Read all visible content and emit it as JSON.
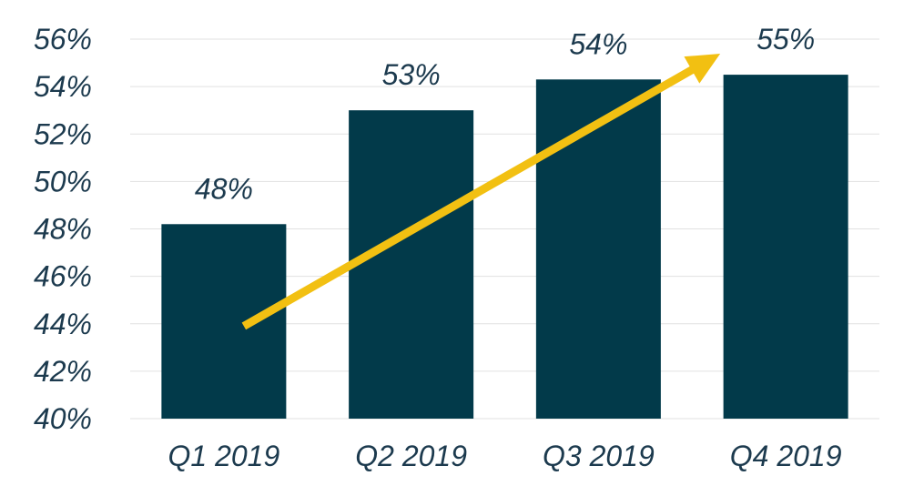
{
  "chart_data": {
    "type": "bar",
    "title": "",
    "xlabel": "",
    "ylabel": "",
    "categories": [
      "Q1 2019",
      "Q2 2019",
      "Q3 2019",
      "Q4 2019"
    ],
    "values": [
      48.2,
      53.0,
      54.3,
      54.5
    ],
    "data_labels": [
      "48%",
      "53%",
      "54%",
      "55%"
    ],
    "ylim": [
      40,
      56
    ],
    "y_ticks": [
      40,
      42,
      44,
      46,
      48,
      50,
      52,
      54,
      56
    ],
    "y_tick_labels": [
      "40%",
      "42%",
      "44%",
      "46%",
      "48%",
      "50%",
      "52%",
      "54%",
      "56%"
    ],
    "grid": true,
    "legend": "none",
    "colors": {
      "bar": "#023a4a",
      "trend_arrow": "#f2c012",
      "text": "#1c3a4e",
      "grid": "#e1e1e1"
    },
    "annotations": [
      {
        "type": "trend-arrow",
        "from": {
          "x": "Q1 2019",
          "y": 43.9
        },
        "to": {
          "x": "Q4 2019",
          "y": 55.5
        }
      }
    ]
  }
}
